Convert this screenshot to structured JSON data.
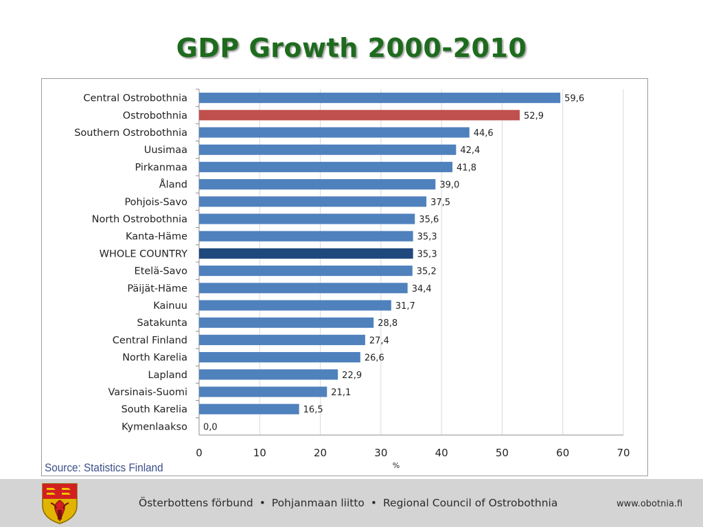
{
  "slide": {
    "title": "GDP Growth 2000-2010",
    "source": "Source: Statistics Finland"
  },
  "footer": {
    "org_sv": "Österbottens förbund",
    "org_fi": "Pohjanmaan liitto",
    "org_en": "Regional Council of Ostrobothnia",
    "separator": "•",
    "url": "www.obotnia.fi"
  },
  "colors": {
    "default_bar": "#4f81bd",
    "highlight_bar": "#c0504d",
    "country_bar": "#1f497d",
    "title": "#1e6b1e"
  },
  "chart_data": {
    "type": "bar",
    "orientation": "horizontal",
    "categories": [
      "Central Ostrobothnia",
      "Ostrobothnia",
      "Southern Ostrobothnia",
      "Uusimaa",
      "Pirkanmaa",
      "Åland",
      "Pohjois-Savo",
      "North Ostrobothnia",
      "Kanta-Häme",
      "WHOLE COUNTRY",
      "Etelä-Savo",
      "Päijät-Häme",
      "Kainuu",
      "Satakunta",
      "Central Finland",
      "North Karelia",
      "Lapland",
      "Varsinais-Suomi",
      "South Karelia",
      "Kymenlaakso"
    ],
    "values": [
      59.6,
      52.9,
      44.6,
      42.4,
      41.8,
      39.0,
      37.5,
      35.6,
      35.3,
      35.3,
      35.2,
      34.4,
      31.7,
      28.8,
      27.4,
      26.6,
      22.9,
      21.1,
      16.5,
      0.0
    ],
    "value_labels": [
      "59,6",
      "52,9",
      "44,6",
      "42,4",
      "41,8",
      "39,0",
      "37,5",
      "35,6",
      "35,3",
      "35,3",
      "35,2",
      "34,4",
      "31,7",
      "28,8",
      "27,4",
      "26,6",
      "22,9",
      "21,1",
      "16,5",
      "0,0"
    ],
    "highlight": {
      "Ostrobothnia": "highlight_bar",
      "WHOLE COUNTRY": "country_bar"
    },
    "xlim": [
      0,
      70
    ],
    "xticks": [
      0,
      10,
      20,
      30,
      40,
      50,
      60,
      70
    ],
    "xlabel": "%",
    "ylabel": "",
    "grid": "vertical"
  }
}
